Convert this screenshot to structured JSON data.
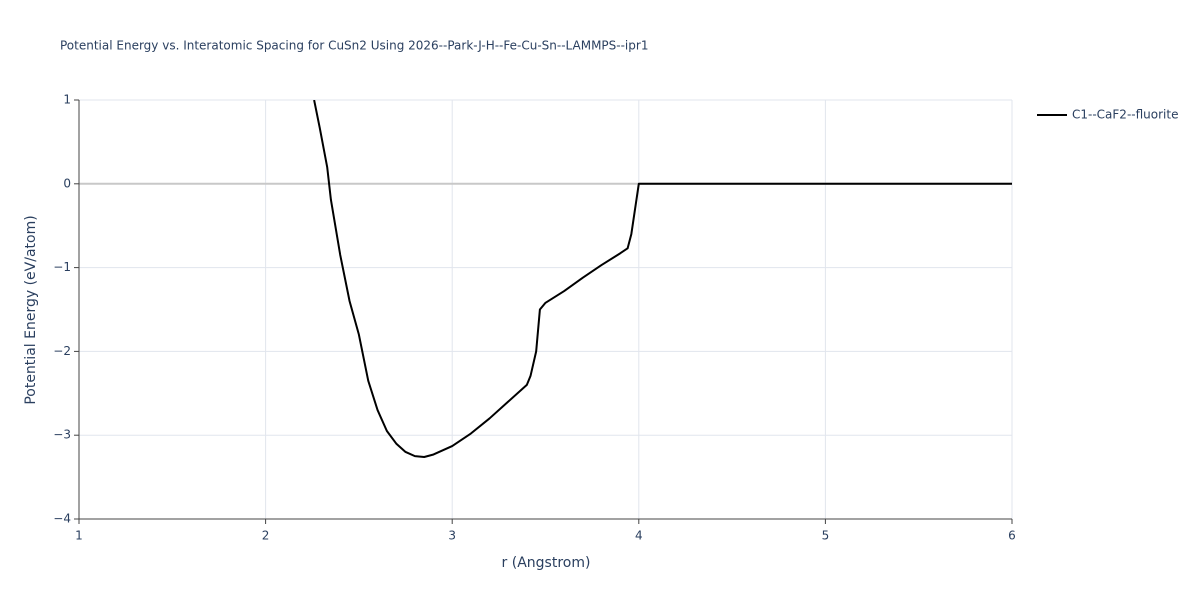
{
  "chart_data": {
    "type": "line",
    "title": "Potential Energy vs. Interatomic Spacing for CuSn2 Using 2026--Park-J-H--Fe-Cu-Sn--LAMMPS--ipr1",
    "x_label": "r (Angstrom)",
    "y_label": "Potential Energy (eV/atom)",
    "xlim": [
      1,
      6
    ],
    "ylim": [
      -4,
      1
    ],
    "xticks": [
      1,
      2,
      3,
      4,
      5,
      6
    ],
    "yticks": [
      1,
      0,
      {
        "value": -1,
        "label": "−1"
      },
      {
        "value": -2,
        "label": "−2"
      },
      {
        "value": -3,
        "label": "−3"
      },
      {
        "value": -4,
        "label": "−4"
      }
    ],
    "grid": true,
    "legend": "top-right",
    "x": [
      2.26,
      2.29,
      2.33,
      2.35,
      2.4,
      2.45,
      2.5,
      2.55,
      2.6,
      2.65,
      2.7,
      2.75,
      2.8,
      2.85,
      2.9,
      3.0,
      3.1,
      3.2,
      3.3,
      3.4,
      3.42,
      3.45,
      3.47,
      3.5,
      3.6,
      3.7,
      3.8,
      3.9,
      3.94,
      3.96,
      3.98,
      4.0,
      6.0
    ],
    "series": [
      {
        "name": "C1--CaF2--fluorite",
        "color": "#000000",
        "values": [
          1.0,
          0.67,
          0.2,
          -0.19,
          -0.85,
          -1.4,
          -1.8,
          -2.35,
          -2.7,
          -2.95,
          -3.1,
          -3.2,
          -3.25,
          -3.26,
          -3.23,
          -3.13,
          -2.98,
          -2.8,
          -2.6,
          -2.4,
          -2.29,
          -2.0,
          -1.5,
          -1.42,
          -1.28,
          -1.12,
          -0.97,
          -0.83,
          -0.77,
          -0.6,
          -0.3,
          0,
          0
        ]
      }
    ]
  }
}
